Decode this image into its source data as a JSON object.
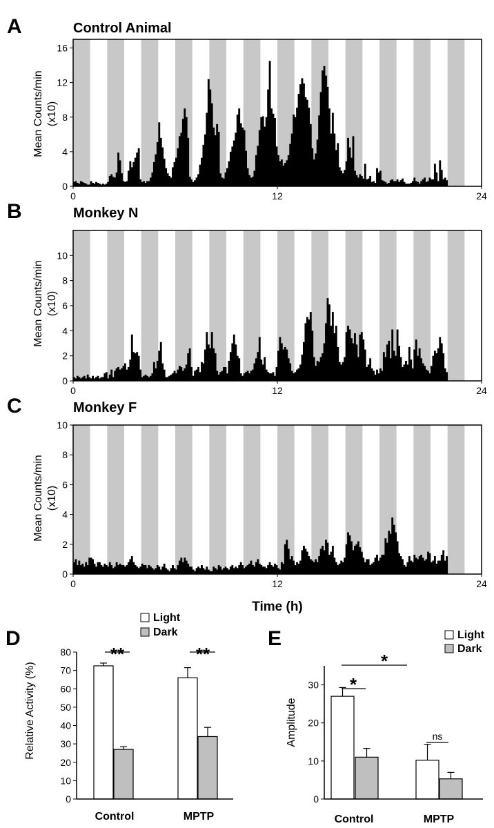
{
  "chart_data": [
    {
      "panel": "A",
      "type": "bar",
      "title": "Control Animal",
      "ylabel": "Mean Counts/min (x10)",
      "ylabel_lines": [
        "Mean Counts/min",
        "(x10)"
      ],
      "xlabel": "",
      "xlim": [
        0,
        24
      ],
      "ylim": [
        0,
        17
      ],
      "yticks": [
        0,
        4,
        8,
        12,
        16
      ],
      "xticks": [
        0,
        12,
        24
      ],
      "dark_periods": [
        [
          0,
          1
        ],
        [
          2,
          3
        ],
        [
          4,
          5
        ],
        [
          6,
          7
        ],
        [
          8,
          9
        ],
        [
          10,
          11
        ],
        [
          12,
          13
        ],
        [
          14,
          15
        ],
        [
          16,
          17
        ],
        [
          18,
          19
        ],
        [
          20,
          21
        ],
        [
          22,
          23
        ]
      ],
      "bin_hours": 0.1,
      "values": [
        0.5,
        0.6,
        0.4,
        0.3,
        0.6,
        0.5,
        0.4,
        0.3,
        0.2,
        0.2,
        0.6,
        0.4,
        0.3,
        0.5,
        0.4,
        0.3,
        0.2,
        0.3,
        0.2,
        0.3,
        0.5,
        1.2,
        1.4,
        1.1,
        1.0,
        1.6,
        3.9,
        3.0,
        1.5,
        0.6,
        0.5,
        0.6,
        1.8,
        2.9,
        2.2,
        2.8,
        3.3,
        3.9,
        4.4,
        0.8,
        0.5,
        0.6,
        0.4,
        0.6,
        0.6,
        1.0,
        1.6,
        2.8,
        3.7,
        5.1,
        7.4,
        5.6,
        4.5,
        3.2,
        2.1,
        1.5,
        1.2,
        1.0,
        2.2,
        2.8,
        3.3,
        4.4,
        5.8,
        6.2,
        7.8,
        9.0,
        8.0,
        5.6,
        1.1,
        0.8,
        0.5,
        0.7,
        1.0,
        1.4,
        2.5,
        3.3,
        4.8,
        6.0,
        8.5,
        12.4,
        11.2,
        9.6,
        6.8,
        5.9,
        7.2,
        6.3,
        1.5,
        1.0,
        0.9,
        1.6,
        2.1,
        2.9,
        4.0,
        4.6,
        5.3,
        6.2,
        8.3,
        9.0,
        7.3,
        6.8,
        6.5,
        4.1,
        2.1,
        1.3,
        1.0,
        1.1,
        1.8,
        3.6,
        4.7,
        6.5,
        8.0,
        8.1,
        6.9,
        8.0,
        11.2,
        14.5,
        9.0,
        8.4,
        7.9,
        4.6,
        3.6,
        2.9,
        3.1,
        2.4,
        2.7,
        3.0,
        3.6,
        4.9,
        6.1,
        8.3,
        8.0,
        9.1,
        10.7,
        11.8,
        12.5,
        11.9,
        10.3,
        10.0,
        9.1,
        7.2,
        4.4,
        3.1,
        3.8,
        5.4,
        8.2,
        10.9,
        13.4,
        13.9,
        12.8,
        11.5,
        9.0,
        6.1,
        8.5,
        6.1,
        4.2,
        5.0,
        2.2,
        1.8,
        1.5,
        1.9,
        2.9,
        5.6,
        4.5,
        3.3,
        5.8,
        1.8,
        1.3,
        1.0,
        1.4,
        1.2,
        0.9,
        2.6,
        0.8,
        0.9,
        1.2,
        0.5,
        0.6,
        0.4,
        2.1,
        1.6,
        1.8,
        0.7,
        0.6,
        0.5,
        0.3,
        0.4,
        0.7,
        0.8,
        0.6,
        0.6,
        0.8,
        0.5,
        0.7,
        0.9,
        0.5,
        0.3,
        0.3,
        0.3,
        0.4,
        0.6,
        1.0,
        0.6,
        0.5,
        0.3,
        0.6,
        0.8,
        1.0,
        0.5,
        0.6,
        1.0,
        0.8,
        0.8,
        2.6,
        1.6,
        0.6,
        3.0,
        1.9,
        0.8,
        1.0,
        0.7
      ]
    },
    {
      "panel": "B",
      "type": "bar",
      "title": "Monkey N",
      "ylabel": "Mean Counts/min (x10)",
      "ylabel_lines": [
        "Mean Counts/min",
        "(x10)"
      ],
      "xlabel": "",
      "xlim": [
        0,
        24
      ],
      "ylim": [
        0,
        12
      ],
      "yticks": [
        0,
        2,
        4,
        6,
        8,
        10
      ],
      "xticks": [
        0,
        12,
        24
      ],
      "dark_periods": [
        [
          0,
          1
        ],
        [
          2,
          3
        ],
        [
          4,
          5
        ],
        [
          6,
          7
        ],
        [
          8,
          9
        ],
        [
          10,
          11
        ],
        [
          12,
          13
        ],
        [
          14,
          15
        ],
        [
          16,
          17
        ],
        [
          18,
          19
        ],
        [
          20,
          21
        ],
        [
          22,
          23
        ]
      ],
      "bin_hours": 0.1,
      "values": [
        0.3,
        0.2,
        0.4,
        0.3,
        0.2,
        0.3,
        0.4,
        0.2,
        0.5,
        0.3,
        0.2,
        0.4,
        0.2,
        0.3,
        0.4,
        0.2,
        0.3,
        0.3,
        0.6,
        0.7,
        0.2,
        0.5,
        0.9,
        0.3,
        0.8,
        1.0,
        1.1,
        0.9,
        1.0,
        1.2,
        1.4,
        0.9,
        1.1,
        1.7,
        3.7,
        2.3,
        2.2,
        2.3,
        2.0,
        0.9,
        0.3,
        0.4,
        0.5,
        0.4,
        0.3,
        0.4,
        0.6,
        1.5,
        1.0,
        1.6,
        2.4,
        3.1,
        1.4,
        0.9,
        0.3,
        0.3,
        0.4,
        0.5,
        0.6,
        0.8,
        0.6,
        0.9,
        1.2,
        1.1,
        0.8,
        1.0,
        1.3,
        2.2,
        2.6,
        1.1,
        0.4,
        0.8,
        0.9,
        1.1,
        0.7,
        1.5,
        1.4,
        2.5,
        3.9,
        2.9,
        2.6,
        3.9,
        2.6,
        2.2,
        0.8,
        0.5,
        0.7,
        0.8,
        1.1,
        1.1,
        0.6,
        1.6,
        2.3,
        3.0,
        3.7,
        2.9,
        2.0,
        1.8,
        0.6,
        0.4,
        0.6,
        0.7,
        0.8,
        0.6,
        0.8,
        0.9,
        1.4,
        1.8,
        2.3,
        3.5,
        1.7,
        1.3,
        1.9,
        0.9,
        0.7,
        0.6,
        0.6,
        0.7,
        0.4,
        1.1,
        2.4,
        3.5,
        3.0,
        2.5,
        2.7,
        2.5,
        1.8,
        1.4,
        0.8,
        0.6,
        0.7,
        0.9,
        1.0,
        1.3,
        2.1,
        3.1,
        4.6,
        5.1,
        4.9,
        5.5,
        4.0,
        1.9,
        1.2,
        1.6,
        1.5,
        1.9,
        2.2,
        3.0,
        4.6,
        6.6,
        6.1,
        4.4,
        5.5,
        3.8,
        4.4,
        2.7,
        1.5,
        1.3,
        1.5,
        1.9,
        3.9,
        4.4,
        4.1,
        3.4,
        3.0,
        3.8,
        2.9,
        1.9,
        3.7,
        3.9,
        3.3,
        2.5,
        1.1,
        1.3,
        1.8,
        1.0,
        0.8,
        0.5,
        0.9,
        0.6,
        1.0,
        0.8,
        2.3,
        1.9,
        2.9,
        3.2,
        1.8,
        4.1,
        2.4,
        2.0,
        4.1,
        2.8,
        1.9,
        1.1,
        1.3,
        1.6,
        1.3,
        2.7,
        1.7,
        1.0,
        2.5,
        3.3,
        2.0,
        2.6,
        1.8,
        1.4,
        1.2,
        0.9,
        0.8,
        0.6,
        1.2,
        2.0,
        2.4,
        2.2,
        2.6,
        3.5,
        3.0,
        2.2,
        1.0,
        0.7
      ]
    },
    {
      "panel": "C",
      "type": "bar",
      "title": "Monkey F",
      "ylabel": "Mean Counts/min (x10)",
      "ylabel_lines": [
        "Mean Counts/min",
        "(x10)"
      ],
      "xlabel": "Time (h)",
      "xlim": [
        0,
        24
      ],
      "ylim": [
        0,
        10
      ],
      "yticks": [
        0,
        2,
        4,
        6,
        8,
        10
      ],
      "xticks": [
        0,
        12,
        24
      ],
      "dark_periods": [
        [
          0,
          1
        ],
        [
          2,
          3
        ],
        [
          4,
          5
        ],
        [
          6,
          7
        ],
        [
          8,
          9
        ],
        [
          10,
          11
        ],
        [
          12,
          13
        ],
        [
          14,
          15
        ],
        [
          16,
          17
        ],
        [
          18,
          19
        ],
        [
          20,
          21
        ],
        [
          22,
          23
        ]
      ],
      "bin_hours": 0.1,
      "values": [
        0.8,
        1.0,
        0.6,
        0.9,
        0.6,
        0.7,
        0.5,
        0.8,
        0.6,
        1.1,
        1.1,
        1.0,
        0.7,
        0.5,
        0.8,
        0.8,
        0.6,
        0.5,
        0.7,
        0.6,
        0.5,
        0.8,
        0.6,
        0.4,
        0.5,
        0.8,
        0.6,
        0.7,
        0.6,
        0.6,
        0.5,
        0.6,
        0.8,
        1.0,
        1.2,
        0.8,
        0.6,
        0.5,
        0.4,
        0.5,
        0.7,
        0.6,
        0.6,
        0.4,
        0.6,
        0.5,
        0.4,
        0.3,
        0.4,
        0.6,
        0.5,
        0.3,
        0.5,
        0.7,
        0.4,
        0.3,
        0.2,
        0.4,
        0.6,
        0.4,
        0.3,
        0.6,
        0.9,
        1.1,
        0.8,
        1.1,
        0.9,
        0.7,
        0.5,
        0.5,
        0.3,
        0.2,
        0.4,
        0.5,
        0.4,
        0.6,
        0.4,
        0.3,
        0.5,
        0.3,
        0.2,
        0.2,
        0.5,
        0.4,
        0.3,
        0.6,
        0.5,
        0.3,
        0.4,
        0.5,
        0.4,
        0.3,
        0.5,
        0.6,
        0.4,
        0.5,
        0.4,
        0.6,
        0.8,
        0.6,
        0.4,
        0.5,
        0.6,
        0.7,
        0.9,
        0.6,
        0.5,
        0.8,
        1.0,
        0.7,
        0.6,
        0.5,
        0.5,
        0.4,
        0.6,
        0.8,
        0.6,
        0.5,
        0.7,
        0.6,
        0.4,
        0.3,
        0.8,
        0.7,
        2.0,
        2.3,
        1.7,
        1.0,
        1.2,
        0.9,
        0.6,
        0.8,
        0.7,
        0.9,
        1.6,
        1.9,
        1.7,
        1.5,
        1.2,
        1.0,
        0.9,
        0.8,
        1.0,
        0.8,
        1.2,
        1.7,
        1.9,
        1.6,
        2.3,
        2.1,
        1.3,
        1.5,
        1.9,
        1.1,
        0.8,
        0.6,
        0.7,
        0.9,
        0.8,
        1.1,
        2.0,
        2.8,
        2.6,
        2.2,
        1.6,
        1.9,
        2.0,
        2.2,
        1.8,
        1.5,
        1.1,
        0.8,
        1.0,
        1.0,
        0.6,
        0.7,
        0.8,
        1.1,
        1.3,
        0.9,
        1.1,
        1.3,
        1.3,
        2.4,
        2.1,
        2.9,
        2.7,
        3.8,
        3.3,
        2.8,
        2.2,
        1.4,
        1.2,
        1.0,
        0.6,
        0.5,
        0.8,
        1.2,
        0.9,
        0.8,
        1.3,
        1.1,
        1.0,
        1.2,
        1.3,
        1.1,
        0.9,
        1.0,
        1.5,
        1.4,
        0.8,
        0.9,
        1.2,
        0.7,
        0.9,
        0.9,
        1.3,
        1.6,
        0.9,
        1.2
      ]
    },
    {
      "panel": "D",
      "type": "bar",
      "title": "",
      "ylabel": "Relative Activity (%)",
      "categories": [
        "Control",
        "MPTP"
      ],
      "series": [
        {
          "name": "Light",
          "values": [
            72.5,
            66
          ],
          "errors": [
            1.5,
            5.5
          ],
          "color": "#ffffff"
        },
        {
          "name": "Dark",
          "values": [
            27,
            34
          ],
          "errors": [
            1.5,
            5
          ],
          "color": "#bfbfbf"
        }
      ],
      "ylim": [
        0,
        80
      ],
      "yticks": [
        0,
        10,
        20,
        30,
        40,
        50,
        60,
        70,
        80
      ],
      "significance": [
        "**",
        "**"
      ],
      "legend": "top-right"
    },
    {
      "panel": "E",
      "type": "bar",
      "title": "",
      "ylabel": "Amplitude",
      "categories": [
        "Control",
        "MPTP"
      ],
      "series": [
        {
          "name": "Light",
          "values": [
            27,
            10.2
          ],
          "errors": [
            2.3,
            4.2
          ],
          "color": "#ffffff"
        },
        {
          "name": "Dark",
          "values": [
            11,
            5.3
          ],
          "errors": [
            2.3,
            1.7
          ],
          "color": "#bfbfbf"
        }
      ],
      "ylim": [
        0,
        35
      ],
      "yticks": [
        0,
        10,
        20,
        30
      ],
      "significance": [
        "*",
        "ns",
        "*"
      ],
      "legend": "top-right"
    }
  ]
}
